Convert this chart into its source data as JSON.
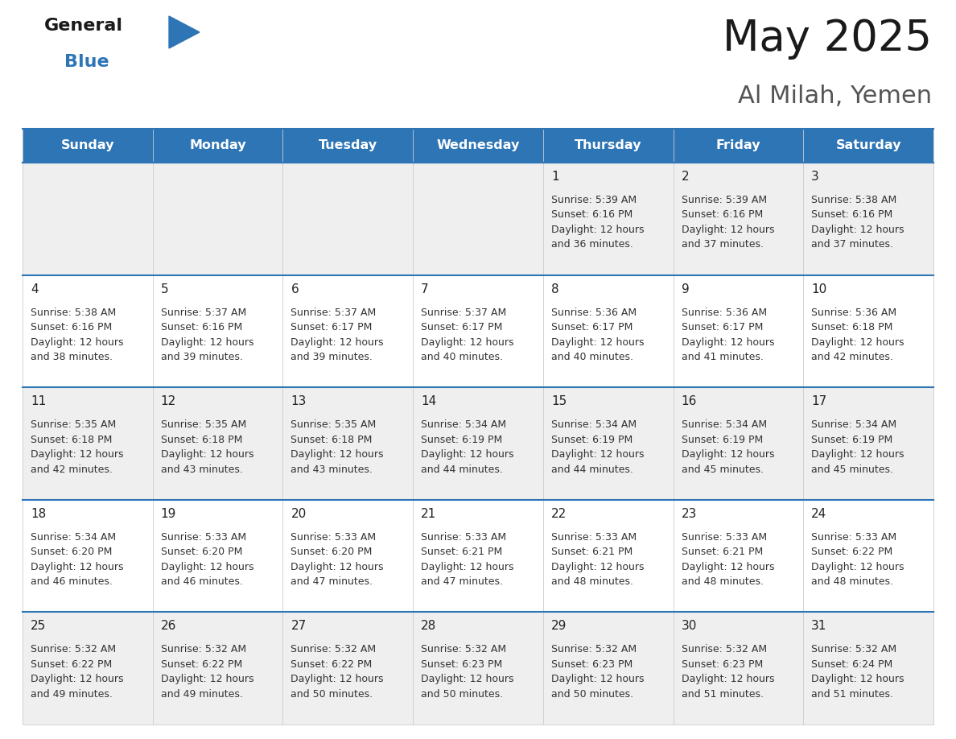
{
  "title": "May 2025",
  "subtitle": "Al Milah, Yemen",
  "header_color": "#2E75B6",
  "header_text_color": "#FFFFFF",
  "days_of_week": [
    "Sunday",
    "Monday",
    "Tuesday",
    "Wednesday",
    "Thursday",
    "Friday",
    "Saturday"
  ],
  "cell_bg_white": "#FFFFFF",
  "cell_bg_gray": "#EFEFEF",
  "text_color": "#333333",
  "day_num_color": "#222222",
  "line_color": "#2E75B6",
  "border_color": "#AAAAAA",
  "calendar_data": [
    [
      null,
      null,
      null,
      null,
      {
        "day": 1,
        "sunrise": "5:39 AM",
        "sunset": "6:16 PM",
        "daylight": "12 hours and 36 minutes."
      },
      {
        "day": 2,
        "sunrise": "5:39 AM",
        "sunset": "6:16 PM",
        "daylight": "12 hours and 37 minutes."
      },
      {
        "day": 3,
        "sunrise": "5:38 AM",
        "sunset": "6:16 PM",
        "daylight": "12 hours and 37 minutes."
      }
    ],
    [
      {
        "day": 4,
        "sunrise": "5:38 AM",
        "sunset": "6:16 PM",
        "daylight": "12 hours and 38 minutes."
      },
      {
        "day": 5,
        "sunrise": "5:37 AM",
        "sunset": "6:16 PM",
        "daylight": "12 hours and 39 minutes."
      },
      {
        "day": 6,
        "sunrise": "5:37 AM",
        "sunset": "6:17 PM",
        "daylight": "12 hours and 39 minutes."
      },
      {
        "day": 7,
        "sunrise": "5:37 AM",
        "sunset": "6:17 PM",
        "daylight": "12 hours and 40 minutes."
      },
      {
        "day": 8,
        "sunrise": "5:36 AM",
        "sunset": "6:17 PM",
        "daylight": "12 hours and 40 minutes."
      },
      {
        "day": 9,
        "sunrise": "5:36 AM",
        "sunset": "6:17 PM",
        "daylight": "12 hours and 41 minutes."
      },
      {
        "day": 10,
        "sunrise": "5:36 AM",
        "sunset": "6:18 PM",
        "daylight": "12 hours and 42 minutes."
      }
    ],
    [
      {
        "day": 11,
        "sunrise": "5:35 AM",
        "sunset": "6:18 PM",
        "daylight": "12 hours and 42 minutes."
      },
      {
        "day": 12,
        "sunrise": "5:35 AM",
        "sunset": "6:18 PM",
        "daylight": "12 hours and 43 minutes."
      },
      {
        "day": 13,
        "sunrise": "5:35 AM",
        "sunset": "6:18 PM",
        "daylight": "12 hours and 43 minutes."
      },
      {
        "day": 14,
        "sunrise": "5:34 AM",
        "sunset": "6:19 PM",
        "daylight": "12 hours and 44 minutes."
      },
      {
        "day": 15,
        "sunrise": "5:34 AM",
        "sunset": "6:19 PM",
        "daylight": "12 hours and 44 minutes."
      },
      {
        "day": 16,
        "sunrise": "5:34 AM",
        "sunset": "6:19 PM",
        "daylight": "12 hours and 45 minutes."
      },
      {
        "day": 17,
        "sunrise": "5:34 AM",
        "sunset": "6:19 PM",
        "daylight": "12 hours and 45 minutes."
      }
    ],
    [
      {
        "day": 18,
        "sunrise": "5:34 AM",
        "sunset": "6:20 PM",
        "daylight": "12 hours and 46 minutes."
      },
      {
        "day": 19,
        "sunrise": "5:33 AM",
        "sunset": "6:20 PM",
        "daylight": "12 hours and 46 minutes."
      },
      {
        "day": 20,
        "sunrise": "5:33 AM",
        "sunset": "6:20 PM",
        "daylight": "12 hours and 47 minutes."
      },
      {
        "day": 21,
        "sunrise": "5:33 AM",
        "sunset": "6:21 PM",
        "daylight": "12 hours and 47 minutes."
      },
      {
        "day": 22,
        "sunrise": "5:33 AM",
        "sunset": "6:21 PM",
        "daylight": "12 hours and 48 minutes."
      },
      {
        "day": 23,
        "sunrise": "5:33 AM",
        "sunset": "6:21 PM",
        "daylight": "12 hours and 48 minutes."
      },
      {
        "day": 24,
        "sunrise": "5:33 AM",
        "sunset": "6:22 PM",
        "daylight": "12 hours and 48 minutes."
      }
    ],
    [
      {
        "day": 25,
        "sunrise": "5:32 AM",
        "sunset": "6:22 PM",
        "daylight": "12 hours and 49 minutes."
      },
      {
        "day": 26,
        "sunrise": "5:32 AM",
        "sunset": "6:22 PM",
        "daylight": "12 hours and 49 minutes."
      },
      {
        "day": 27,
        "sunrise": "5:32 AM",
        "sunset": "6:22 PM",
        "daylight": "12 hours and 50 minutes."
      },
      {
        "day": 28,
        "sunrise": "5:32 AM",
        "sunset": "6:23 PM",
        "daylight": "12 hours and 50 minutes."
      },
      {
        "day": 29,
        "sunrise": "5:32 AM",
        "sunset": "6:23 PM",
        "daylight": "12 hours and 50 minutes."
      },
      {
        "day": 30,
        "sunrise": "5:32 AM",
        "sunset": "6:23 PM",
        "daylight": "12 hours and 51 minutes."
      },
      {
        "day": 31,
        "sunrise": "5:32 AM",
        "sunset": "6:24 PM",
        "daylight": "12 hours and 51 minutes."
      }
    ]
  ]
}
